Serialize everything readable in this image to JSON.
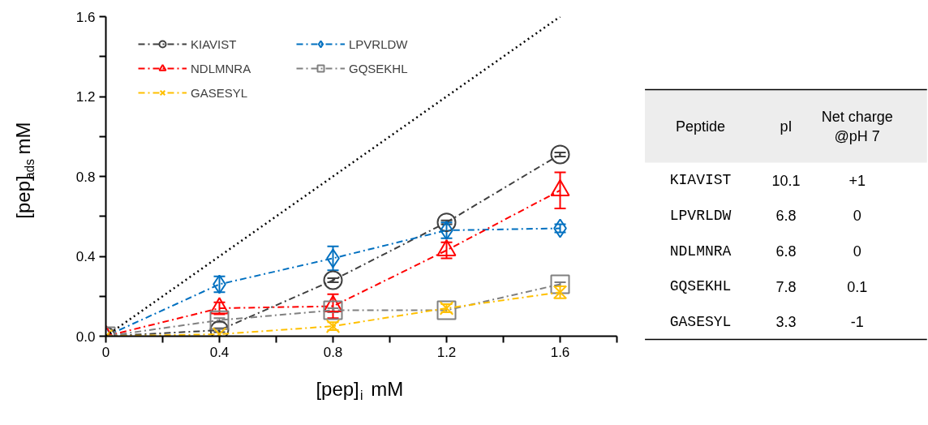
{
  "chart_data": [
    {
      "type": "line",
      "xlabel": "[pep]$_{i}$ mM",
      "ylabel": "[pep]$_{ads}$ mM",
      "x": [
        0,
        0.4,
        0.8,
        1.2,
        1.6
      ],
      "xlim": [
        0,
        1.8
      ],
      "xticks": [
        0,
        0.4,
        0.8,
        1.2,
        1.6
      ],
      "ylim": [
        0,
        1.6
      ],
      "yticks": [
        {
          "value": 0,
          "label": "0.0"
        },
        {
          "value": 0.4,
          "label": "0.4"
        },
        {
          "value": 0.8,
          "label": "0.8"
        },
        {
          "value": 1.2,
          "label": "1.2"
        },
        {
          "value": 1.6,
          "label": "1.6"
        }
      ],
      "grid": false,
      "legend": "top left",
      "line_style": "dashed",
      "series": [
        {
          "name": "KIAVIST",
          "color": "#404040",
          "marker": "circle",
          "values": [
            0,
            0.03,
            0.28,
            0.57,
            0.91
          ],
          "errors": [
            null,
            0.01,
            0.01,
            0.01,
            0.01
          ]
        },
        {
          "name": "LPVRLDW",
          "color": "#0070c0",
          "marker": "diamond",
          "values": [
            0,
            0.26,
            0.39,
            0.53,
            0.54
          ],
          "errors": [
            null,
            0.04,
            0.06,
            0.04,
            0.02
          ]
        },
        {
          "name": "NDLMNRA",
          "color": "#ff0000",
          "marker": "triangle",
          "values": [
            0,
            0.14,
            0.15,
            0.43,
            0.73
          ],
          "errors": [
            null,
            0.03,
            0.06,
            0.04,
            0.09
          ]
        },
        {
          "name": "GQSEKHL",
          "color": "#808080",
          "marker": "square",
          "values": [
            0,
            0.08,
            0.13,
            0.13,
            0.26
          ],
          "errors": [
            null,
            0.01,
            0.01,
            null,
            0.01
          ]
        },
        {
          "name": "GASESYL",
          "color": "#ffc000",
          "marker": "cross",
          "values": [
            0,
            0.01,
            0.05,
            0.14,
            0.22
          ],
          "errors": [
            null,
            null,
            0.02,
            0.02,
            0.03
          ]
        },
        {
          "color": "#000000",
          "marker": "none",
          "line_style": "dotted",
          "x": [
            0,
            1.6
          ],
          "values": [
            0,
            1.6
          ]
        }
      ]
    },
    {
      "type": "other",
      "categories": [
        "Peptide",
        "pI",
        "Net charge\n@pH 7"
      ],
      "y_categories": [
        "KIAVIST",
        "LPVRLDW",
        "NDLMNRA",
        "GQSEKHL",
        "GASESYL"
      ],
      "cell_labels": [
        [
          "10.1",
          "+1"
        ],
        [
          "6.8",
          "0"
        ],
        [
          "6.8",
          "0"
        ],
        [
          "7.8",
          "0.1"
        ],
        [
          "3.3",
          "-1"
        ]
      ]
    }
  ]
}
